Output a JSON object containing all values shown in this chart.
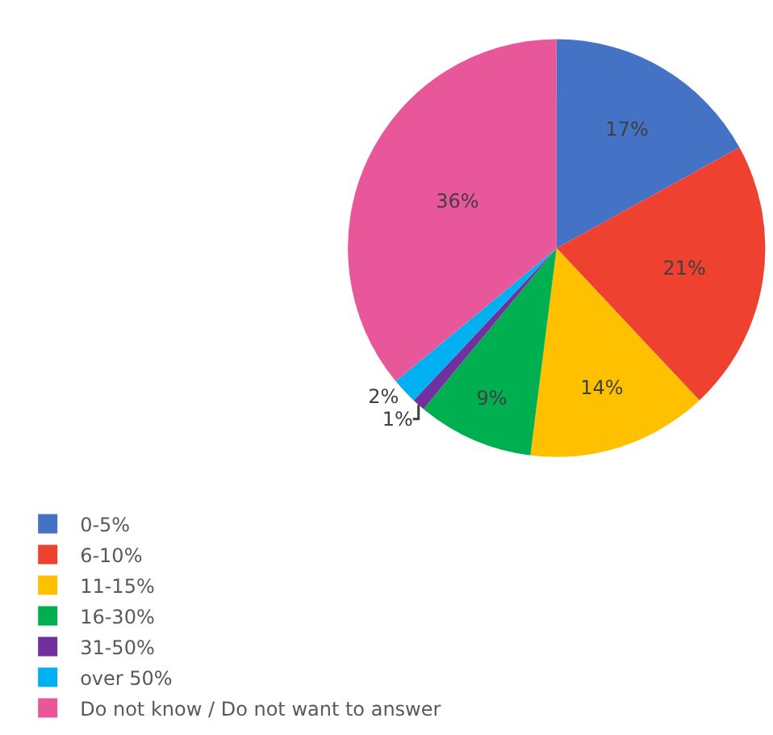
{
  "chart_data": {
    "type": "pie",
    "categories": [
      "0-5%",
      "6-10%",
      "11-15%",
      "16-30%",
      "31-50%",
      "over 50%",
      "Do not know / Do not want to answer"
    ],
    "values": [
      17,
      21,
      14,
      9,
      1,
      2,
      36
    ],
    "value_labels": [
      "17%",
      "21%",
      "14%",
      "9%",
      "1%",
      "2%",
      "36%"
    ],
    "colors": [
      "#4472c4",
      "#ee4130",
      "#ffc000",
      "#00b050",
      "#7030a0",
      "#00b0f0",
      "#e8579a"
    ],
    "legend": "bottom"
  }
}
